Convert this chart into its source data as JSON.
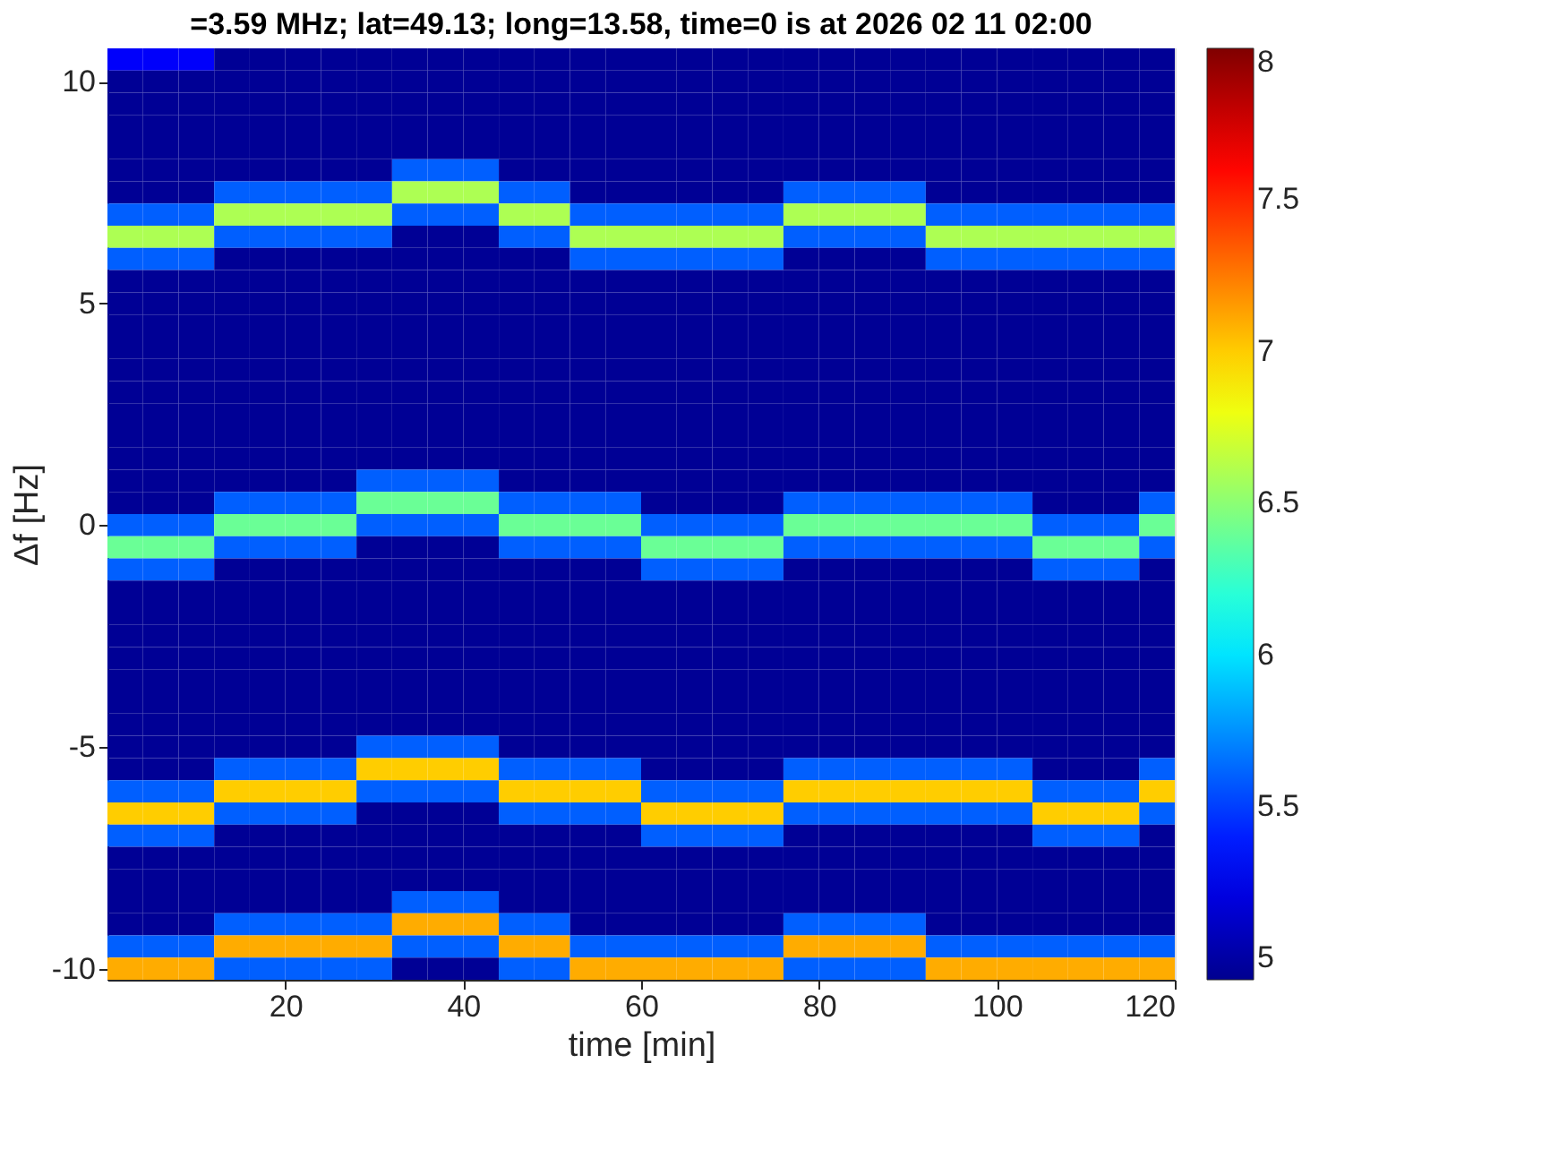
{
  "chart_data": {
    "type": "heatmap",
    "title": "=3.59 MHz;  lat=49.13; long=13.58, time=0 is at 2026 02 11 02:00",
    "xlabel": "time [min]",
    "ylabel": "Δf [Hz]",
    "x": [
      2,
      6,
      10,
      14,
      18,
      22,
      26,
      30,
      34,
      38,
      42,
      46,
      50,
      54,
      58,
      62,
      66,
      70,
      74,
      78,
      82,
      86,
      90,
      94,
      98,
      102,
      106,
      110,
      114,
      118
    ],
    "y": [
      10.5,
      10.0,
      9.5,
      9.0,
      8.5,
      8.0,
      7.5,
      7.0,
      6.5,
      6.0,
      5.5,
      5.0,
      4.5,
      4.0,
      3.5,
      3.0,
      2.5,
      2.0,
      1.5,
      1.0,
      0.5,
      0.0,
      -0.5,
      -1.0,
      -1.5,
      -2.0,
      -2.5,
      -3.0,
      -3.5,
      -4.0,
      -4.5,
      -5.0,
      -5.5,
      -6.0,
      -6.5,
      -7.0,
      -7.5,
      -8.0,
      -8.5,
      -9.0,
      -9.5,
      -10.0
    ],
    "cells": [
      [
        5.3,
        5.3,
        5.3,
        4.95,
        4.95,
        4.95,
        4.95,
        4.95,
        4.95,
        4.95,
        4.95,
        4.95,
        4.95,
        4.95,
        4.95,
        4.95,
        4.95,
        4.95,
        4.95,
        4.95,
        4.95,
        4.95,
        4.95,
        4.95,
        4.95,
        4.95,
        4.95,
        4.95,
        4.95,
        4.95
      ],
      [
        4.95,
        4.95,
        4.95,
        4.95,
        4.95,
        4.95,
        4.95,
        4.95,
        4.95,
        4.95,
        4.95,
        4.95,
        4.95,
        4.95,
        4.95,
        4.95,
        4.95,
        4.95,
        4.95,
        4.95,
        4.95,
        4.95,
        4.95,
        4.95,
        4.95,
        4.95,
        4.95,
        4.95,
        4.95,
        4.95
      ],
      [
        4.95,
        4.95,
        4.95,
        4.95,
        4.95,
        4.95,
        4.95,
        4.95,
        4.95,
        4.95,
        4.95,
        4.95,
        4.95,
        4.95,
        4.95,
        4.95,
        4.95,
        4.95,
        4.95,
        4.95,
        4.95,
        4.95,
        4.95,
        4.95,
        4.95,
        4.95,
        4.95,
        4.95,
        4.95,
        4.95
      ],
      [
        4.95,
        4.95,
        4.95,
        4.95,
        4.95,
        4.95,
        4.95,
        4.95,
        4.95,
        4.95,
        4.95,
        4.95,
        4.95,
        4.95,
        4.95,
        4.95,
        4.95,
        4.95,
        4.95,
        4.95,
        4.95,
        4.95,
        4.95,
        4.95,
        4.95,
        4.95,
        4.95,
        4.95,
        4.95,
        4.95
      ],
      [
        4.95,
        4.95,
        4.95,
        4.95,
        4.95,
        4.95,
        4.95,
        4.95,
        4.95,
        4.95,
        4.95,
        4.95,
        4.95,
        4.95,
        4.95,
        4.95,
        4.95,
        4.95,
        4.95,
        4.95,
        4.95,
        4.95,
        4.95,
        4.95,
        4.95,
        4.95,
        4.95,
        4.95,
        4.95,
        4.95
      ],
      [
        4.95,
        4.95,
        4.95,
        4.95,
        4.95,
        4.95,
        4.95,
        4.95,
        5.6,
        5.6,
        5.6,
        4.95,
        4.95,
        4.95,
        4.95,
        4.95,
        4.95,
        4.95,
        4.95,
        4.95,
        4.95,
        4.95,
        4.95,
        4.95,
        4.95,
        4.95,
        4.95,
        4.95,
        4.95,
        4.95
      ],
      [
        4.95,
        4.95,
        4.95,
        5.6,
        5.6,
        5.6,
        5.6,
        5.6,
        6.6,
        6.6,
        6.6,
        5.6,
        5.6,
        4.95,
        4.95,
        4.95,
        4.95,
        4.95,
        4.95,
        5.6,
        5.6,
        5.6,
        5.6,
        4.95,
        4.95,
        4.95,
        4.95,
        4.95,
        4.95,
        4.95
      ],
      [
        5.6,
        5.6,
        5.6,
        6.6,
        6.6,
        6.6,
        6.6,
        6.6,
        5.6,
        5.6,
        5.6,
        6.6,
        6.6,
        5.6,
        5.6,
        5.6,
        5.6,
        5.6,
        5.6,
        6.6,
        6.6,
        6.6,
        6.6,
        5.6,
        5.6,
        5.6,
        5.6,
        5.6,
        5.6,
        5.6
      ],
      [
        6.6,
        6.6,
        6.6,
        5.6,
        5.6,
        5.6,
        5.6,
        5.6,
        4.95,
        4.95,
        4.95,
        5.6,
        5.6,
        6.6,
        6.6,
        6.6,
        6.6,
        6.6,
        6.6,
        5.6,
        5.6,
        5.6,
        5.6,
        6.6,
        6.6,
        6.6,
        6.6,
        6.6,
        6.6,
        6.6
      ],
      [
        5.6,
        5.6,
        5.6,
        4.95,
        4.95,
        4.95,
        4.95,
        4.95,
        4.95,
        4.95,
        4.95,
        4.95,
        4.95,
        5.6,
        5.6,
        5.6,
        5.6,
        5.6,
        5.6,
        4.95,
        4.95,
        4.95,
        4.95,
        5.6,
        5.6,
        5.6,
        5.6,
        5.6,
        5.6,
        5.6
      ],
      [
        4.95,
        4.95,
        4.95,
        4.95,
        4.95,
        4.95,
        4.95,
        4.95,
        4.95,
        4.95,
        4.95,
        4.95,
        4.95,
        4.95,
        4.95,
        4.95,
        4.95,
        4.95,
        4.95,
        4.95,
        4.95,
        4.95,
        4.95,
        4.95,
        4.95,
        4.95,
        4.95,
        4.95,
        4.95,
        4.95
      ],
      [
        4.95,
        4.95,
        4.95,
        4.95,
        4.95,
        4.95,
        4.95,
        4.95,
        4.95,
        4.95,
        4.95,
        4.95,
        4.95,
        4.95,
        4.95,
        4.95,
        4.95,
        4.95,
        4.95,
        4.95,
        4.95,
        4.95,
        4.95,
        4.95,
        4.95,
        4.95,
        4.95,
        4.95,
        4.95,
        4.95
      ],
      [
        4.95,
        4.95,
        4.95,
        4.95,
        4.95,
        4.95,
        4.95,
        4.95,
        4.95,
        4.95,
        4.95,
        4.95,
        4.95,
        4.95,
        4.95,
        4.95,
        4.95,
        4.95,
        4.95,
        4.95,
        4.95,
        4.95,
        4.95,
        4.95,
        4.95,
        4.95,
        4.95,
        4.95,
        4.95,
        4.95
      ],
      [
        4.95,
        4.95,
        4.95,
        4.95,
        4.95,
        4.95,
        4.95,
        4.95,
        4.95,
        4.95,
        4.95,
        4.95,
        4.95,
        4.95,
        4.95,
        4.95,
        4.95,
        4.95,
        4.95,
        4.95,
        4.95,
        4.95,
        4.95,
        4.95,
        4.95,
        4.95,
        4.95,
        4.95,
        4.95,
        4.95
      ],
      [
        4.95,
        4.95,
        4.95,
        4.95,
        4.95,
        4.95,
        4.95,
        4.95,
        4.95,
        4.95,
        4.95,
        4.95,
        4.95,
        4.95,
        4.95,
        4.95,
        4.95,
        4.95,
        4.95,
        4.95,
        4.95,
        4.95,
        4.95,
        4.95,
        4.95,
        4.95,
        4.95,
        4.95,
        4.95,
        4.95
      ],
      [
        4.95,
        4.95,
        4.95,
        4.95,
        4.95,
        4.95,
        4.95,
        4.95,
        4.95,
        4.95,
        4.95,
        4.95,
        4.95,
        4.95,
        4.95,
        4.95,
        4.95,
        4.95,
        4.95,
        4.95,
        4.95,
        4.95,
        4.95,
        4.95,
        4.95,
        4.95,
        4.95,
        4.95,
        4.95,
        4.95
      ],
      [
        4.95,
        4.95,
        4.95,
        4.95,
        4.95,
        4.95,
        4.95,
        4.95,
        4.95,
        4.95,
        4.95,
        4.95,
        4.95,
        4.95,
        4.95,
        4.95,
        4.95,
        4.95,
        4.95,
        4.95,
        4.95,
        4.95,
        4.95,
        4.95,
        4.95,
        4.95,
        4.95,
        4.95,
        4.95,
        4.95
      ],
      [
        4.95,
        4.95,
        4.95,
        4.95,
        4.95,
        4.95,
        4.95,
        4.95,
        4.95,
        4.95,
        4.95,
        4.95,
        4.95,
        4.95,
        4.95,
        4.95,
        4.95,
        4.95,
        4.95,
        4.95,
        4.95,
        4.95,
        4.95,
        4.95,
        4.95,
        4.95,
        4.95,
        4.95,
        4.95,
        4.95
      ],
      [
        4.95,
        4.95,
        4.95,
        4.95,
        4.95,
        4.95,
        4.95,
        4.95,
        4.95,
        4.95,
        4.95,
        4.95,
        4.95,
        4.95,
        4.95,
        4.95,
        4.95,
        4.95,
        4.95,
        4.95,
        4.95,
        4.95,
        4.95,
        4.95,
        4.95,
        4.95,
        4.95,
        4.95,
        4.95,
        4.95
      ],
      [
        4.95,
        4.95,
        4.95,
        4.95,
        4.95,
        4.95,
        4.95,
        5.6,
        5.6,
        5.6,
        5.6,
        4.95,
        4.95,
        4.95,
        4.95,
        4.95,
        4.95,
        4.95,
        4.95,
        4.95,
        4.95,
        4.95,
        4.95,
        4.95,
        4.95,
        4.95,
        4.95,
        4.95,
        4.95,
        4.95
      ],
      [
        4.95,
        4.95,
        4.95,
        5.6,
        5.6,
        5.6,
        5.6,
        6.4,
        6.4,
        6.4,
        6.4,
        5.6,
        5.6,
        5.6,
        5.6,
        4.95,
        4.95,
        4.95,
        4.95,
        5.6,
        5.6,
        5.6,
        5.6,
        5.6,
        5.6,
        5.6,
        4.95,
        4.95,
        4.95,
        5.6
      ],
      [
        5.6,
        5.6,
        5.6,
        6.4,
        6.4,
        6.4,
        6.4,
        5.6,
        5.6,
        5.6,
        5.6,
        6.4,
        6.4,
        6.4,
        6.4,
        5.6,
        5.6,
        5.6,
        5.6,
        6.4,
        6.4,
        6.4,
        6.4,
        6.4,
        6.4,
        6.4,
        5.6,
        5.6,
        5.6,
        6.4
      ],
      [
        6.4,
        6.4,
        6.4,
        5.6,
        5.6,
        5.6,
        5.6,
        4.95,
        4.95,
        4.95,
        4.95,
        5.6,
        5.6,
        5.6,
        5.6,
        6.4,
        6.4,
        6.4,
        6.4,
        5.6,
        5.6,
        5.6,
        5.6,
        5.6,
        5.6,
        5.6,
        6.4,
        6.4,
        6.4,
        5.6
      ],
      [
        5.6,
        5.6,
        5.6,
        4.95,
        4.95,
        4.95,
        4.95,
        4.95,
        4.95,
        4.95,
        4.95,
        4.95,
        4.95,
        4.95,
        4.95,
        5.6,
        5.6,
        5.6,
        5.6,
        4.95,
        4.95,
        4.95,
        4.95,
        4.95,
        4.95,
        4.95,
        5.6,
        5.6,
        5.6,
        4.95
      ],
      [
        4.95,
        4.95,
        4.95,
        4.95,
        4.95,
        4.95,
        4.95,
        4.95,
        4.95,
        4.95,
        4.95,
        4.95,
        4.95,
        4.95,
        4.95,
        4.95,
        4.95,
        4.95,
        4.95,
        4.95,
        4.95,
        4.95,
        4.95,
        4.95,
        4.95,
        4.95,
        4.95,
        4.95,
        4.95,
        4.95
      ],
      [
        4.95,
        4.95,
        4.95,
        4.95,
        4.95,
        4.95,
        4.95,
        4.95,
        4.95,
        4.95,
        4.95,
        4.95,
        4.95,
        4.95,
        4.95,
        4.95,
        4.95,
        4.95,
        4.95,
        4.95,
        4.95,
        4.95,
        4.95,
        4.95,
        4.95,
        4.95,
        4.95,
        4.95,
        4.95,
        4.95
      ],
      [
        4.95,
        4.95,
        4.95,
        4.95,
        4.95,
        4.95,
        4.95,
        4.95,
        4.95,
        4.95,
        4.95,
        4.95,
        4.95,
        4.95,
        4.95,
        4.95,
        4.95,
        4.95,
        4.95,
        4.95,
        4.95,
        4.95,
        4.95,
        4.95,
        4.95,
        4.95,
        4.95,
        4.95,
        4.95,
        4.95
      ],
      [
        4.95,
        4.95,
        4.95,
        4.95,
        4.95,
        4.95,
        4.95,
        4.95,
        4.95,
        4.95,
        4.95,
        4.95,
        4.95,
        4.95,
        4.95,
        4.95,
        4.95,
        4.95,
        4.95,
        4.95,
        4.95,
        4.95,
        4.95,
        4.95,
        4.95,
        4.95,
        4.95,
        4.95,
        4.95,
        4.95
      ],
      [
        4.95,
        4.95,
        4.95,
        4.95,
        4.95,
        4.95,
        4.95,
        4.95,
        4.95,
        4.95,
        4.95,
        4.95,
        4.95,
        4.95,
        4.95,
        4.95,
        4.95,
        4.95,
        4.95,
        4.95,
        4.95,
        4.95,
        4.95,
        4.95,
        4.95,
        4.95,
        4.95,
        4.95,
        4.95,
        4.95
      ],
      [
        4.95,
        4.95,
        4.95,
        4.95,
        4.95,
        4.95,
        4.95,
        4.95,
        4.95,
        4.95,
        4.95,
        4.95,
        4.95,
        4.95,
        4.95,
        4.95,
        4.95,
        4.95,
        4.95,
        4.95,
        4.95,
        4.95,
        4.95,
        4.95,
        4.95,
        4.95,
        4.95,
        4.95,
        4.95,
        4.95
      ],
      [
        4.95,
        4.95,
        4.95,
        4.95,
        4.95,
        4.95,
        4.95,
        4.95,
        4.95,
        4.95,
        4.95,
        4.95,
        4.95,
        4.95,
        4.95,
        4.95,
        4.95,
        4.95,
        4.95,
        4.95,
        4.95,
        4.95,
        4.95,
        4.95,
        4.95,
        4.95,
        4.95,
        4.95,
        4.95,
        4.95
      ],
      [
        4.95,
        4.95,
        4.95,
        4.95,
        4.95,
        4.95,
        4.95,
        5.6,
        5.6,
        5.6,
        5.6,
        4.95,
        4.95,
        4.95,
        4.95,
        4.95,
        4.95,
        4.95,
        4.95,
        4.95,
        4.95,
        4.95,
        4.95,
        4.95,
        4.95,
        4.95,
        4.95,
        4.95,
        4.95,
        4.95
      ],
      [
        4.95,
        4.95,
        4.95,
        5.6,
        5.6,
        5.6,
        5.6,
        7.0,
        7.0,
        7.0,
        7.0,
        5.6,
        5.6,
        5.6,
        5.6,
        4.95,
        4.95,
        4.95,
        4.95,
        5.6,
        5.6,
        5.6,
        5.6,
        5.6,
        5.6,
        5.6,
        4.95,
        4.95,
        4.95,
        5.6
      ],
      [
        5.6,
        5.6,
        5.6,
        7.0,
        7.0,
        7.0,
        7.0,
        5.6,
        5.6,
        5.6,
        5.6,
        7.0,
        7.0,
        7.0,
        7.0,
        5.6,
        5.6,
        5.6,
        5.6,
        7.0,
        7.0,
        7.0,
        7.0,
        7.0,
        7.0,
        7.0,
        5.6,
        5.6,
        5.6,
        7.0
      ],
      [
        7.0,
        7.0,
        7.0,
        5.6,
        5.6,
        5.6,
        5.6,
        4.95,
        4.95,
        4.95,
        4.95,
        5.6,
        5.6,
        5.6,
        5.6,
        7.0,
        7.0,
        7.0,
        7.0,
        5.6,
        5.6,
        5.6,
        5.6,
        5.6,
        5.6,
        5.6,
        7.0,
        7.0,
        7.0,
        5.6
      ],
      [
        5.6,
        5.6,
        5.6,
        4.95,
        4.95,
        4.95,
        4.95,
        4.95,
        4.95,
        4.95,
        4.95,
        4.95,
        4.95,
        4.95,
        4.95,
        5.6,
        5.6,
        5.6,
        5.6,
        4.95,
        4.95,
        4.95,
        4.95,
        4.95,
        4.95,
        4.95,
        5.6,
        5.6,
        5.6,
        4.95
      ],
      [
        4.95,
        4.95,
        4.95,
        4.95,
        4.95,
        4.95,
        4.95,
        4.95,
        4.95,
        4.95,
        4.95,
        4.95,
        4.95,
        4.95,
        4.95,
        4.95,
        4.95,
        4.95,
        4.95,
        4.95,
        4.95,
        4.95,
        4.95,
        4.95,
        4.95,
        4.95,
        4.95,
        4.95,
        4.95,
        4.95
      ],
      [
        4.95,
        4.95,
        4.95,
        4.95,
        4.95,
        4.95,
        4.95,
        4.95,
        4.95,
        4.95,
        4.95,
        4.95,
        4.95,
        4.95,
        4.95,
        4.95,
        4.95,
        4.95,
        4.95,
        4.95,
        4.95,
        4.95,
        4.95,
        4.95,
        4.95,
        4.95,
        4.95,
        4.95,
        4.95,
        4.95
      ],
      [
        4.95,
        4.95,
        4.95,
        4.95,
        4.95,
        4.95,
        4.95,
        4.95,
        5.6,
        5.6,
        5.6,
        4.95,
        4.95,
        4.95,
        4.95,
        4.95,
        4.95,
        4.95,
        4.95,
        4.95,
        4.95,
        4.95,
        4.95,
        4.95,
        4.95,
        4.95,
        4.95,
        4.95,
        4.95,
        4.95
      ],
      [
        4.95,
        4.95,
        4.95,
        5.6,
        5.6,
        5.6,
        5.6,
        5.6,
        7.1,
        7.1,
        7.1,
        5.6,
        5.6,
        4.95,
        4.95,
        4.95,
        4.95,
        4.95,
        4.95,
        5.6,
        5.6,
        5.6,
        5.6,
        4.95,
        4.95,
        4.95,
        4.95,
        4.95,
        4.95,
        4.95
      ],
      [
        5.6,
        5.6,
        5.6,
        7.1,
        7.1,
        7.1,
        7.1,
        7.1,
        5.6,
        5.6,
        5.6,
        7.1,
        7.1,
        5.6,
        5.6,
        5.6,
        5.6,
        5.6,
        5.6,
        7.1,
        7.1,
        7.1,
        7.1,
        5.6,
        5.6,
        5.6,
        5.6,
        5.6,
        5.6,
        5.6
      ],
      [
        7.1,
        7.1,
        7.1,
        5.6,
        5.6,
        5.6,
        5.6,
        5.6,
        4.95,
        4.95,
        4.95,
        5.6,
        5.6,
        7.1,
        7.1,
        7.1,
        7.1,
        7.1,
        7.1,
        5.6,
        5.6,
        5.6,
        5.6,
        7.1,
        7.1,
        7.1,
        7.1,
        7.1,
        7.1,
        7.1
      ]
    ],
    "xlim": [
      0,
      120
    ],
    "ylim": [
      -10.25,
      10.75
    ],
    "xticks": [
      20,
      40,
      60,
      80,
      100,
      120
    ],
    "yticks": [
      -10,
      -5,
      0,
      5,
      10
    ],
    "clim": [
      4.93,
      8
    ],
    "cticks": [
      5,
      5.5,
      6,
      6.5,
      7,
      7.5,
      8
    ],
    "colors": [
      "#00008f",
      "#0000ff",
      "#0080ff",
      "#00ffff",
      "#80ff80",
      "#ffff00",
      "#ff8000",
      "#ff0000",
      "#800000"
    ],
    "grid": false
  }
}
